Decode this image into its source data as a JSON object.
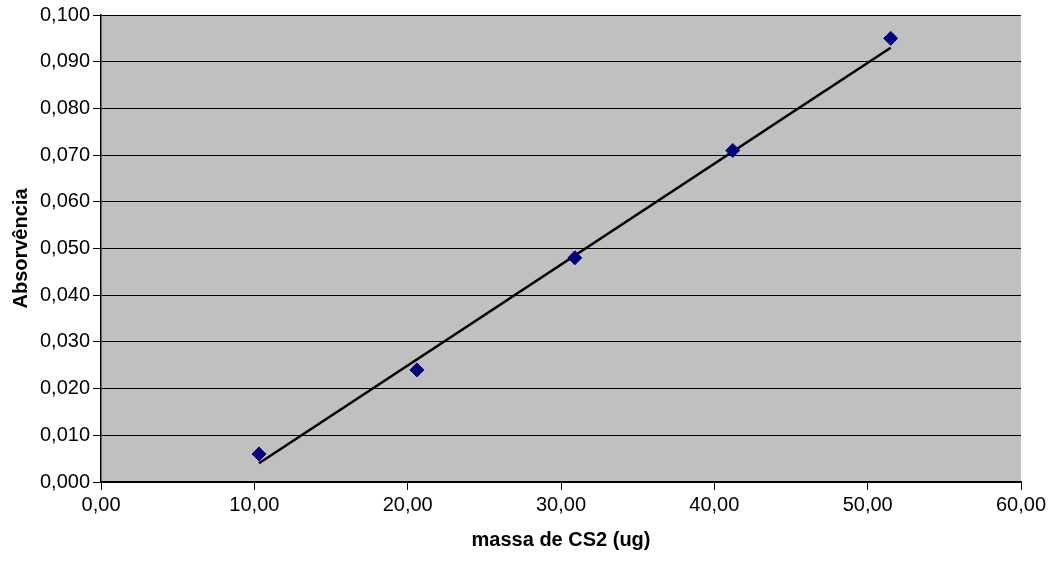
{
  "chart_data": {
    "type": "scatter",
    "xlabel": "massa de CS2 (ug)",
    "ylabel": "Absorvência",
    "series": [
      {
        "type": "scatter",
        "color": "#000080",
        "x": [
          10.3,
          20.6,
          30.9,
          41.2,
          51.5
        ],
        "values": [
          0.006,
          0.024,
          0.048,
          0.071,
          0.095
        ],
        "marker": "diamond"
      },
      {
        "type": "line",
        "color": "#000000",
        "x": [
          10.3,
          51.5
        ],
        "values": [
          0.004,
          0.093
        ],
        "marker": "none",
        "line_style": "solid"
      }
    ],
    "xlim": [
      0,
      60
    ],
    "xticks": [
      {
        "value": 0,
        "label": "0,00"
      },
      {
        "value": 10,
        "label": "10,00"
      },
      {
        "value": 20,
        "label": "20,00"
      },
      {
        "value": 30,
        "label": "30,00"
      },
      {
        "value": 40,
        "label": "40,00"
      },
      {
        "value": 50,
        "label": "50,00"
      },
      {
        "value": 60,
        "label": "60,00"
      }
    ],
    "ylim": [
      0,
      0.1
    ],
    "yticks": [
      {
        "value": 0,
        "label": "0,000"
      },
      {
        "value": 0.01,
        "label": "0,010"
      },
      {
        "value": 0.02,
        "label": "0,020"
      },
      {
        "value": 0.03,
        "label": "0,030"
      },
      {
        "value": 0.04,
        "label": "0,040"
      },
      {
        "value": 0.05,
        "label": "0,050"
      },
      {
        "value": 0.06,
        "label": "0,060"
      },
      {
        "value": 0.07,
        "label": "0,070"
      },
      {
        "value": 0.08,
        "label": "0,080"
      },
      {
        "value": 0.09,
        "label": "0,090"
      },
      {
        "value": 0.1,
        "label": "0,100"
      }
    ],
    "grid": "y",
    "legend": false
  }
}
